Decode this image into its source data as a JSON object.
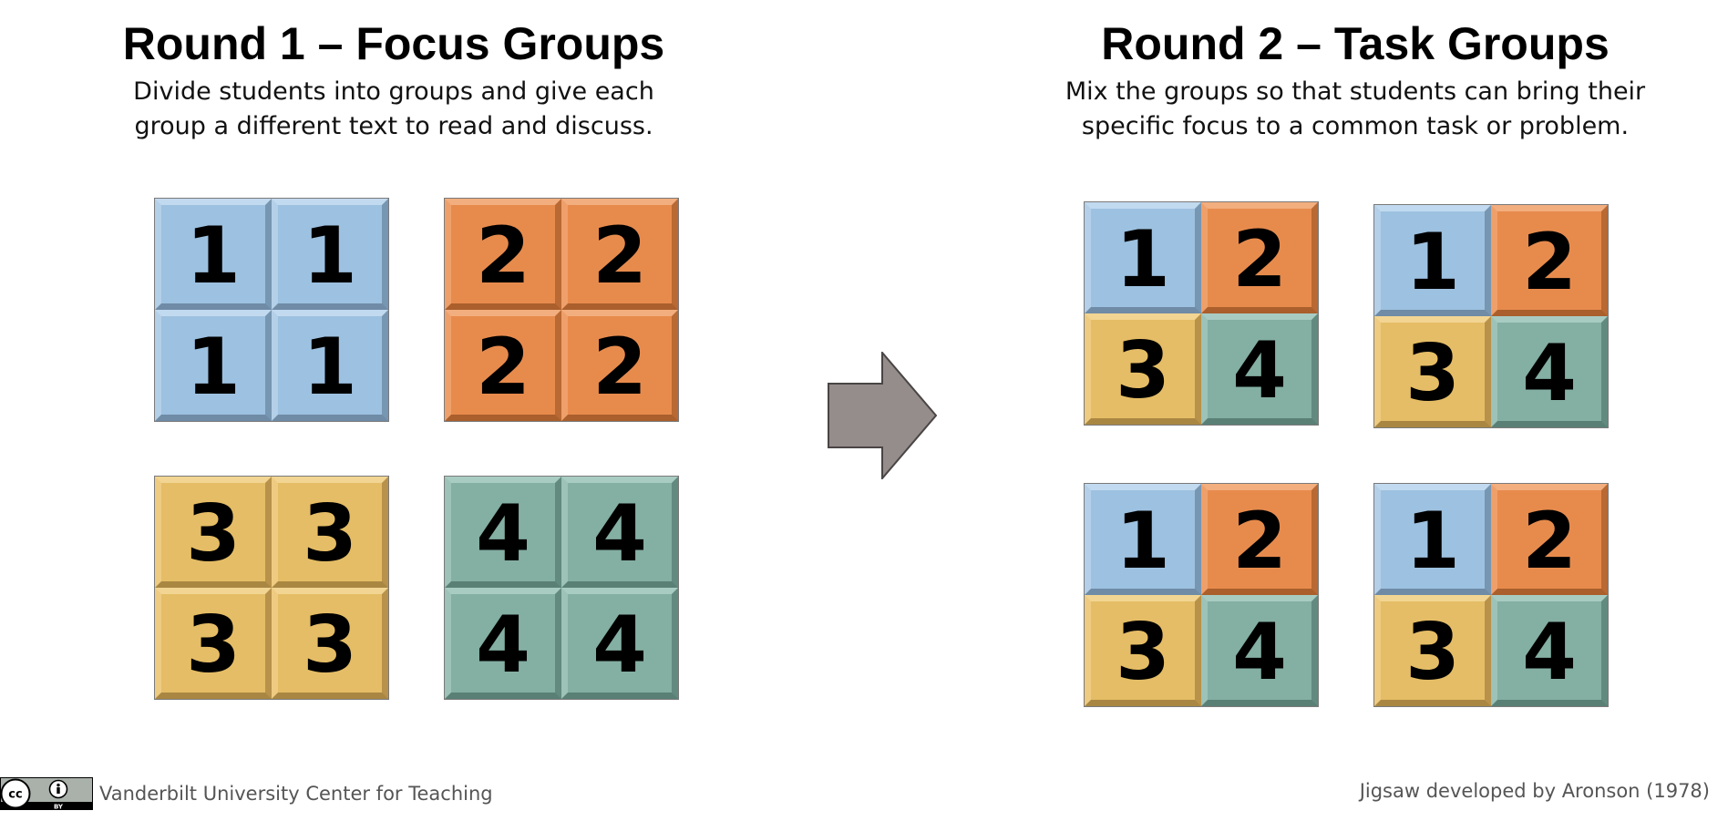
{
  "round1": {
    "title": "Round 1 – Focus Groups",
    "subtitle_line1": "Divide students into groups and give each",
    "subtitle_line2": "group a different text to read and discuss.",
    "groups": [
      {
        "tiles": [
          "1",
          "1",
          "1",
          "1"
        ]
      },
      {
        "tiles": [
          "2",
          "2",
          "2",
          "2"
        ]
      },
      {
        "tiles": [
          "3",
          "3",
          "3",
          "3"
        ]
      },
      {
        "tiles": [
          "4",
          "4",
          "4",
          "4"
        ]
      }
    ]
  },
  "round2": {
    "title": "Round 2 – Task Groups",
    "subtitle_line1": "Mix the groups so that students can bring their",
    "subtitle_line2": "specific focus to a common task or problem.",
    "groups": [
      {
        "tiles": [
          "1",
          "2",
          "3",
          "4"
        ]
      },
      {
        "tiles": [
          "1",
          "2",
          "3",
          "4"
        ]
      },
      {
        "tiles": [
          "1",
          "2",
          "3",
          "4"
        ]
      },
      {
        "tiles": [
          "1",
          "2",
          "3",
          "4"
        ]
      }
    ]
  },
  "colors": {
    "group1": "#9dc1e0",
    "group2": "#e78b4d",
    "group3": "#e5bd66",
    "group4": "#84afa3",
    "arrow": "#958c8c"
  },
  "arrow_icon": "right-arrow-icon",
  "license_icon": "cc-by-icon",
  "footer": {
    "left_text": "Vanderbilt University Center for Teaching",
    "right_text": "Jigsaw developed by Aronson (1978)",
    "badge_by": "BY"
  }
}
